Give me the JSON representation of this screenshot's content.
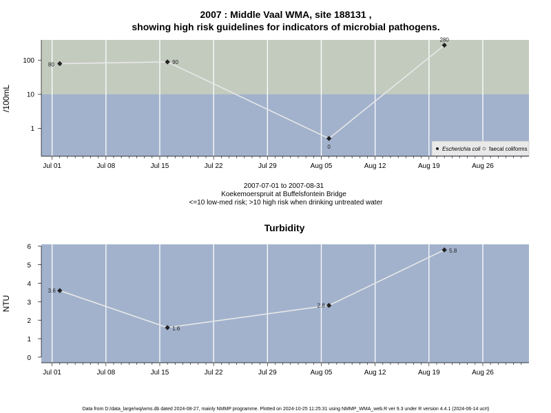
{
  "header": {
    "title_line1": "2007 : Middle Vaal WMA, site 188131 ,",
    "title_line2": "showing high risk guidelines for indicators of microbial pathogens."
  },
  "caption": {
    "line1": "2007-07-01 to 2007-08-31",
    "line2": "Koekemoerspruit at Buffelsfontein Bridge",
    "line3": "<=10 low-med risk; >10 high risk when drinking untreated water"
  },
  "footer": {
    "text": "Data from D:/data_large/wq/wms.db dated 2024-08-27, mainly NMMP programme. Plotted on 2024-10-25 11:25:31 using NMMP_WMA_web.R ver 9.3 under R version 4.4.1 (2024-06-14 ucrt)"
  },
  "colors": {
    "high_band": "#c3cbbf",
    "low_band": "#a2b2cc",
    "grid": "#ffffff",
    "line": "#e8e8e8",
    "point": "#222222"
  },
  "chart_data": [
    {
      "type": "line",
      "title": "",
      "xlabel": "",
      "ylabel": "/100mL",
      "yscale": "log",
      "ylim": [
        0.15,
        400
      ],
      "threshold": 10,
      "x_ticks": [
        "Jul 01",
        "Jul 08",
        "Jul 15",
        "Jul 22",
        "Jul 29",
        "Aug 05",
        "Aug 12",
        "Aug 19",
        "Aug 26"
      ],
      "y_ticks": [
        "1",
        "10",
        "100"
      ],
      "series": [
        {
          "name": "Escherichia coli",
          "x": [
            "2007-07-02",
            "2007-07-16",
            "2007-08-06",
            "2007-08-21"
          ],
          "values": [
            80,
            90,
            0,
            280
          ],
          "labels": [
            "80",
            "90",
            "0",
            "280"
          ]
        }
      ],
      "legend": {
        "position": "bottom-right",
        "entries": [
          "Escherichia coli",
          "faecal coliforms"
        ]
      },
      "grid": true
    },
    {
      "type": "line",
      "title": "Turbidity",
      "xlabel": "",
      "ylabel": "NTU",
      "ylim": [
        -0.3,
        6.1
      ],
      "x_ticks": [
        "Jul 01",
        "Jul 08",
        "Jul 15",
        "Jul 22",
        "Jul 29",
        "Aug 05",
        "Aug 12",
        "Aug 19",
        "Aug 26"
      ],
      "y_ticks": [
        "0",
        "1",
        "2",
        "3",
        "4",
        "5",
        "6"
      ],
      "series": [
        {
          "name": "",
          "x": [
            "2007-07-02",
            "2007-07-16",
            "2007-08-06",
            "2007-08-21"
          ],
          "values": [
            3.6,
            1.6,
            2.8,
            5.8
          ],
          "labels": [
            "3.6",
            "1.6",
            "2.8",
            "5.8"
          ]
        }
      ],
      "grid": true
    }
  ]
}
